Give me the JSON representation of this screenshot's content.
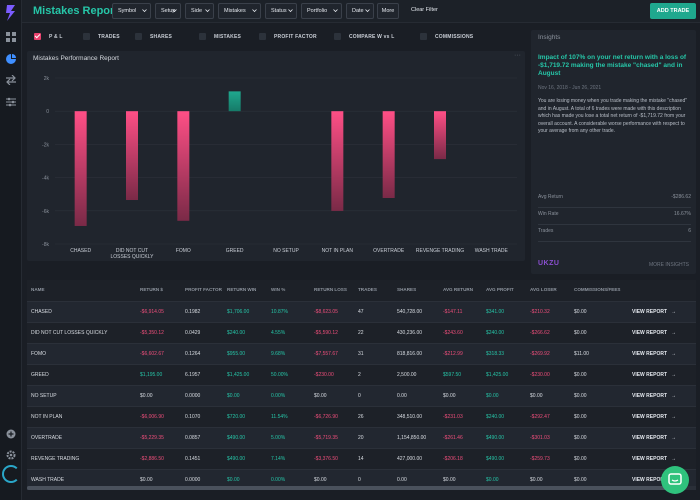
{
  "app": {
    "title": "Mistakes Report"
  },
  "colors": {
    "accent": "#26c6a8",
    "negative": "#ef4e7b",
    "bar_neg": "#e8416d",
    "bar_pos": "#1fa88e",
    "brand": "#8a4fd0"
  },
  "sidebar": {
    "icons": [
      "logo-icon",
      "dashboard-icon",
      "reports-icon",
      "trades-icon",
      "settings-sliders-icon",
      "add-icon",
      "gear-icon",
      "loader-icon"
    ]
  },
  "filters": [
    {
      "label": "Symbol"
    },
    {
      "label": "Setup"
    },
    {
      "label": "Side"
    },
    {
      "label": "Mistakes"
    },
    {
      "label": "Status"
    },
    {
      "label": "Portfolio"
    },
    {
      "label": "Date"
    }
  ],
  "toolbar": {
    "more_label": "More",
    "clear_label": "Clear Filter",
    "add_trade_label": "ADD TRADE"
  },
  "toggles": [
    {
      "label": "P & L",
      "checked": true
    },
    {
      "label": "TRADES",
      "checked": false
    },
    {
      "label": "SHARES",
      "checked": false
    },
    {
      "label": "MISTAKES",
      "checked": false
    },
    {
      "label": "PROFIT FACTOR",
      "checked": false
    },
    {
      "label": "COMPARE W vs L",
      "checked": false
    },
    {
      "label": "COMMISSIONS",
      "checked": false
    }
  ],
  "chart": {
    "title": "Mistakes Performance Report",
    "menu": "···"
  },
  "chart_data": {
    "type": "bar",
    "title": "Mistakes Performance Report",
    "categories": [
      "CHASED",
      "DID NOT CUT LOSSES QUICKLY",
      "FOMO",
      "GREED",
      "NO SETUP",
      "NOT IN PLAN",
      "OVERTRADE",
      "REVENGE TRADING",
      "WASH TRADE"
    ],
    "category_lines": [
      [
        "CHASED"
      ],
      [
        "DID NOT CUT",
        "LOSSES QUICKLY"
      ],
      [
        "FOMO"
      ],
      [
        "GREED"
      ],
      [
        "NO SETUP"
      ],
      [
        "NOT IN PLAN"
      ],
      [
        "OVERTRADE"
      ],
      [
        "REVENGE TRADING"
      ],
      [
        "WASH TRADE"
      ]
    ],
    "values": [
      -6914.05,
      -5350.12,
      -6602.67,
      1195.0,
      0.0,
      -6006.9,
      -5229.35,
      -2886.5,
      0.0
    ],
    "ylim": [
      -8000,
      2000
    ],
    "yticks": [
      2000,
      0,
      -2000,
      -4000,
      -6000,
      -8000
    ],
    "ytick_labels": [
      "2k",
      "0",
      "-2k",
      "-4k",
      "-6k",
      "-8k"
    ],
    "grid": true
  },
  "insights": {
    "header": "Insights",
    "headline": "Impact of 107% on your net return with a loss of -$1,719.72 making the mistake \"chased\" and in August",
    "dates": "Nov 16, 2018 - Jun 26, 2021",
    "body": "You are losing money when you trade making the mistake \"chased\" and in August. A total of 6 trades were made with this description which has made you lose a total net return of -$1,719.72 from your overall account. A considerable worse performance with respect to your average from any other trade.",
    "stats": [
      {
        "label": "Avg Return",
        "value": "-$286.62"
      },
      {
        "label": "Win Rate",
        "value": "16.67%"
      },
      {
        "label": "Trades",
        "value": "6"
      }
    ],
    "brand": "UKZU",
    "more_label": "MORE INSIGHTS"
  },
  "table": {
    "headers": [
      "NAME",
      "RETURN $",
      "PROFIT FACTOR",
      "RETURN WIN",
      "WIN %",
      "RETURN LOSS",
      "TRADES",
      "SHARES",
      "AVG RETURN",
      "AVG PROFIT",
      "AVG LOSER",
      "COMMISSIONS/FEES"
    ],
    "view_label": "VIEW REPORT",
    "rows": [
      {
        "name": "CHASED",
        "ret": "-$6,914.05",
        "pf": "0.1982",
        "rwin": "$1,706.00",
        "winp": "10.87%",
        "rloss": "-$8,623.05",
        "trades": "47",
        "shares": "540,728.00",
        "avgret": "-$147.11",
        "avgprofit": "$341.00",
        "avgloser": "-$210.32",
        "comm": "$0.00"
      },
      {
        "name": "DID NOT CUT LOSSES QUICKLY",
        "ret": "-$5,350.12",
        "pf": "0.0429",
        "rwin": "$240.00",
        "winp": "4.55%",
        "rloss": "-$5,590.12",
        "trades": "22",
        "shares": "430,236.00",
        "avgret": "-$243.60",
        "avgprofit": "$240.00",
        "avgloser": "-$266.62",
        "comm": "$0.00"
      },
      {
        "name": "FOMO",
        "ret": "-$6,602.67",
        "pf": "0.1264",
        "rwin": "$955.00",
        "winp": "9.68%",
        "rloss": "-$7,557.67",
        "trades": "31",
        "shares": "818,816.00",
        "avgret": "-$212.99",
        "avgprofit": "$318.33",
        "avgloser": "-$269.92",
        "comm": "$11.00"
      },
      {
        "name": "GREED",
        "ret": "$1,195.00",
        "pf": "6.1957",
        "rwin": "$1,425.00",
        "winp": "50.00%",
        "rloss": "-$230.00",
        "trades": "2",
        "shares": "2,500.00",
        "avgret": "$597.50",
        "avgprofit": "$1,425.00",
        "avgloser": "-$230.00",
        "comm": "$0.00"
      },
      {
        "name": "NO SETUP",
        "ret": "$0.00",
        "pf": "0.0000",
        "rwin": "$0.00",
        "winp": "0.00%",
        "rloss": "$0.00",
        "trades": "0",
        "shares": "0.00",
        "avgret": "$0.00",
        "avgprofit": "$0.00",
        "avgloser": "$0.00",
        "comm": "$0.00"
      },
      {
        "name": "NOT IN PLAN",
        "ret": "-$6,006.90",
        "pf": "0.1070",
        "rwin": "$720.00",
        "winp": "11.54%",
        "rloss": "-$6,726.90",
        "trades": "26",
        "shares": "348,510.00",
        "avgret": "-$231.03",
        "avgprofit": "$240.00",
        "avgloser": "-$292.47",
        "comm": "$0.00"
      },
      {
        "name": "OVERTRADE",
        "ret": "-$5,229.35",
        "pf": "0.0857",
        "rwin": "$490.00",
        "winp": "5.00%",
        "rloss": "-$5,719.35",
        "trades": "20",
        "shares": "1,154,850.00",
        "avgret": "-$261.46",
        "avgprofit": "$490.00",
        "avgloser": "-$301.03",
        "comm": "$0.00"
      },
      {
        "name": "REVENGE TRADING",
        "ret": "-$2,886.50",
        "pf": "0.1451",
        "rwin": "$490.00",
        "winp": "7.14%",
        "rloss": "-$3,376.50",
        "trades": "14",
        "shares": "427,000.00",
        "avgret": "-$206.18",
        "avgprofit": "$490.00",
        "avgloser": "-$259.73",
        "comm": "$0.00"
      },
      {
        "name": "WASH TRADE",
        "ret": "$0.00",
        "pf": "0.0000",
        "rwin": "$0.00",
        "winp": "0.00%",
        "rloss": "$0.00",
        "trades": "0",
        "shares": "0.00",
        "avgret": "$0.00",
        "avgprofit": "$0.00",
        "avgloser": "$0.00",
        "comm": "$0.00"
      }
    ]
  }
}
